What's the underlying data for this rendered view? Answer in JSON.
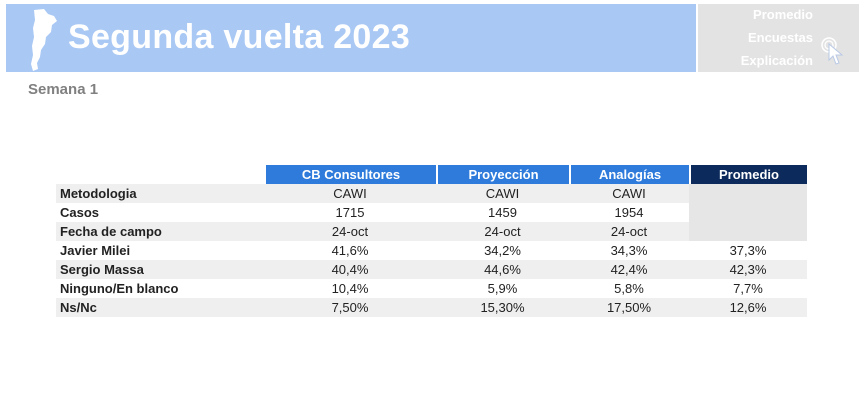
{
  "header": {
    "title": "Segunda vuelta 2023"
  },
  "nav": {
    "items": [
      "Promedio",
      "Encuestas",
      "Explicación"
    ]
  },
  "subtitle": "Semana 1",
  "table": {
    "columns": [
      "CB Consultores",
      "Proyección",
      "Analogías",
      "Promedio"
    ],
    "rows": [
      {
        "label": "Metodologia",
        "values": [
          "CAWI",
          "CAWI",
          "CAWI",
          ""
        ]
      },
      {
        "label": "Casos",
        "values": [
          "1715",
          "1459",
          "1954",
          ""
        ]
      },
      {
        "label": "Fecha de campo",
        "values": [
          "24-oct",
          "24-oct",
          "24-oct",
          ""
        ]
      },
      {
        "label": "Javier Milei",
        "values": [
          "41,6%",
          "34,2%",
          "34,3%",
          "37,3%"
        ]
      },
      {
        "label": "Sergio Massa",
        "values": [
          "40,4%",
          "44,6%",
          "42,4%",
          "42,3%"
        ]
      },
      {
        "label": "Ninguno/En blanco",
        "values": [
          "10,4%",
          "5,9%",
          "5,8%",
          "7,7%"
        ]
      },
      {
        "label": "Ns/Nc",
        "values": [
          "7,50%",
          "15,30%",
          "17,50%",
          "12,6%"
        ]
      }
    ]
  },
  "colors": {
    "banner": "#a9c8f4",
    "header_blue": "#2e7bdc",
    "header_dark": "#0d2a5c",
    "nav_bg": "#e3e3e3"
  },
  "icons": {
    "logo": "argentina-map-icon",
    "pointer": "hand-cursor-icon"
  }
}
